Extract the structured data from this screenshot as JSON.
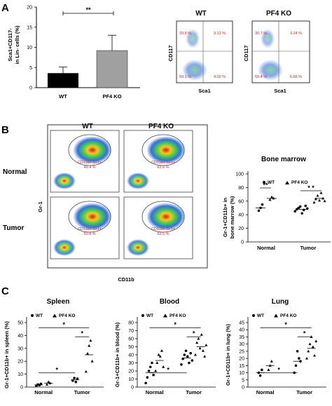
{
  "panelA": {
    "letter": "A",
    "bar": {
      "ylabel_line1": "Sca1+CD117-",
      "ylabel_line2": "in Lin- cells (%)",
      "yticks": [
        "0",
        "5",
        "10",
        "15",
        "20"
      ],
      "ylim": [
        0,
        20
      ],
      "categories": [
        "WT",
        "PF4 KO"
      ],
      "values": [
        3.6,
        9.2
      ],
      "errors": [
        1.5,
        3.8
      ],
      "sig": "**"
    },
    "flow": [
      {
        "title": "WT",
        "ylabel": "CD117",
        "xlabel": "Sca1",
        "q_tl": "33.8 %",
        "q_tr": "3.12 %",
        "q_bl": "59.1 %",
        "q_br": "4.02 %"
      },
      {
        "title": "PF4 KO",
        "ylabel": "CD117",
        "xlabel": "Sca1",
        "q_tl": "30.7 %",
        "q_tr": "3.24 %",
        "q_bl": "59.4 %",
        "q_br": "6.65 %"
      }
    ]
  },
  "panelB": {
    "letter": "B",
    "col_titles": [
      "WT",
      "PF4 KO"
    ],
    "row_titles": [
      "Normal",
      "Tumor"
    ],
    "ylabel": "Gr-1",
    "xlabel": "CD11b",
    "gate_label": "CD11b+ Gr1+",
    "gate_values": [
      "49.4 %",
      "63.6 %",
      "50.8 %",
      "63.5 %"
    ],
    "chart": {
      "title": "Bone marrow",
      "ylabel_line1": "Gr-1+CD11b+ in",
      "ylabel_line2": "bone marrow (%)",
      "yticks": [
        "0",
        "20",
        "40",
        "60",
        "80",
        "100"
      ],
      "ylim": [
        0,
        100
      ],
      "legend": [
        "WT",
        "PF4 KO"
      ],
      "categories": [
        "Normal",
        "Tumor"
      ],
      "sig": [
        "**",
        "* *"
      ]
    }
  },
  "panelC": {
    "letter": "C",
    "legend": [
      "WT",
      "PF4 KO"
    ],
    "categories": [
      "Normal",
      "Tumor"
    ],
    "sig": "*",
    "charts": [
      {
        "title": "Spleen",
        "ylabel": "Gr-1+CD11b+ in spleen (%)",
        "yticks": [
          "0",
          "10",
          "20",
          "30",
          "40",
          "50"
        ],
        "ylim": [
          0,
          50
        ]
      },
      {
        "title": "Blood",
        "ylabel": "Gr-1+CD11b+ in blood (%)",
        "yticks": [
          "0",
          "10",
          "20",
          "30",
          "40",
          "50",
          "60",
          "70",
          "80"
        ],
        "ylim": [
          0,
          80
        ]
      },
      {
        "title": "Lung",
        "ylabel": "Gr-1+CD11b+ in lung (%)",
        "yticks": [
          "0",
          "5",
          "10",
          "15",
          "20",
          "25",
          "30",
          "35",
          "40",
          "45"
        ],
        "ylim": [
          0,
          45
        ]
      }
    ]
  },
  "chart_data": [
    {
      "type": "bar",
      "categories": [
        "WT",
        "PF4 KO"
      ],
      "values": [
        3.6,
        9.2
      ],
      "errors": [
        1.5,
        3.8
      ],
      "ylabel": "Sca1+CD117- in Lin- cells (%)",
      "ylim": [
        0,
        20
      ]
    },
    {
      "type": "scatter",
      "title": "Bone marrow",
      "ylabel": "Gr-1+CD11b+ in bone marrow (%)",
      "ylim": [
        0,
        100
      ],
      "series": [
        {
          "name": "WT",
          "groups": {
            "Normal": [
              46,
              50,
              55
            ],
            "Tumor": [
              45,
              48,
              50,
              52,
              42,
              47,
              53,
              49
            ]
          },
          "means": {
            "Normal": 50,
            "Tumor": 48
          }
        },
        {
          "name": "PF4 KO",
          "groups": {
            "Normal": [
              62,
              66,
              64
            ],
            "Tumor": [
              58,
              63,
              68,
              61,
              72,
              64,
              60
            ]
          },
          "means": {
            "Normal": 64,
            "Tumor": 64
          }
        }
      ]
    },
    {
      "type": "scatter",
      "title": "Spleen",
      "ylabel": "Gr-1+CD11b+ in spleen (%)",
      "ylim": [
        0,
        50
      ],
      "series": [
        {
          "name": "WT",
          "groups": {
            "Normal": [
              1,
              2,
              1.5,
              2.5
            ],
            "Tumor": [
              5,
              7,
              4,
              6.5
            ]
          },
          "means": {
            "Normal": 1.7,
            "Tumor": 5.6
          }
        },
        {
          "name": "PF4 KO",
          "groups": {
            "Normal": [
              2,
              4,
              3
            ],
            "Tumor": [
              12,
              26,
              32,
              36,
              20
            ]
          },
          "means": {
            "Normal": 3,
            "Tumor": 25
          }
        }
      ]
    },
    {
      "type": "scatter",
      "title": "Blood",
      "ylabel": "Gr-1+CD11b+ in blood (%)",
      "ylim": [
        0,
        80
      ],
      "series": [
        {
          "name": "WT",
          "groups": {
            "Normal": [
              5,
              12,
              20,
              25,
              30,
              15
            ],
            "Tumor": [
              28,
              35,
              40,
              45,
              38,
              30,
              42,
              33
            ]
          },
          "means": {
            "Normal": 18,
            "Tumor": 36
          }
        },
        {
          "name": "PF4 KO",
          "groups": {
            "Normal": [
              20,
              30,
              40,
              38,
              45,
              25
            ],
            "Tumor": [
              40,
              55,
              60,
              48,
              65,
              45,
              38,
              52
            ]
          },
          "means": {
            "Normal": 33,
            "Tumor": 50
          }
        }
      ]
    },
    {
      "type": "scatter",
      "title": "Lung",
      "ylabel": "Gr-1+CD11b+ in lung (%)",
      "ylim": [
        0,
        45
      ],
      "series": [
        {
          "name": "WT",
          "groups": {
            "Normal": [
              10,
              8,
              12
            ],
            "Tumor": [
              10,
              15,
              25,
              20,
              18
            ]
          },
          "means": {
            "Normal": 10,
            "Tumor": 18
          }
        },
        {
          "name": "PF4 KO",
          "groups": {
            "Normal": [
              12,
              15,
              18
            ],
            "Tumor": [
              20,
              25,
              30,
              35,
              28,
              22,
              32
            ]
          },
          "means": {
            "Normal": 15,
            "Tumor": 27
          }
        }
      ]
    }
  ]
}
